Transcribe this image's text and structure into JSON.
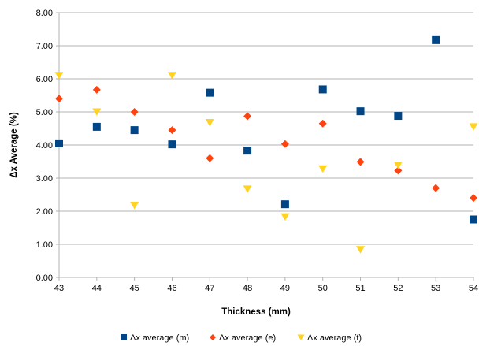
{
  "chart_data": {
    "type": "scatter",
    "xlabel": "Thickness (mm)",
    "ylabel": "Δx Average (%)",
    "xlim": [
      43,
      54
    ],
    "ylim": [
      0,
      8
    ],
    "x_ticks": [
      "43",
      "44",
      "45",
      "46",
      "47",
      "48",
      "49",
      "50",
      "51",
      "52",
      "53",
      "54"
    ],
    "y_ticks": [
      "0.00",
      "1.00",
      "2.00",
      "3.00",
      "4.00",
      "5.00",
      "6.00",
      "7.00",
      "8.00"
    ],
    "grid": "horizontal",
    "legend_position": "bottom",
    "series": [
      {
        "name": "Δx average (m)",
        "marker": "square",
        "color": "#004586",
        "x": [
          43,
          44,
          45,
          46,
          47,
          48,
          49,
          50,
          51,
          52,
          53,
          54
        ],
        "y": [
          4.05,
          4.55,
          4.45,
          4.02,
          5.58,
          3.83,
          2.21,
          5.68,
          5.02,
          4.88,
          7.17,
          1.75
        ]
      },
      {
        "name": "Δx average (e)",
        "marker": "diamond",
        "color": "#ff420e",
        "x": [
          43,
          44,
          45,
          46,
          47,
          48,
          49,
          50,
          51,
          52,
          53,
          54
        ],
        "y": [
          5.4,
          5.67,
          5.0,
          4.45,
          3.6,
          4.87,
          4.03,
          4.65,
          3.49,
          3.23,
          2.7,
          2.4
        ]
      },
      {
        "name": "Δx average (t)",
        "marker": "triangle-down",
        "color": "#ffd320",
        "x": [
          43,
          44,
          45,
          46,
          47,
          48,
          49,
          50,
          51,
          52,
          53,
          54
        ],
        "y": [
          6.1,
          5.0,
          2.18,
          6.1,
          4.68,
          2.67,
          1.83,
          3.28,
          0.84,
          3.39,
          null,
          4.55
        ]
      }
    ]
  }
}
